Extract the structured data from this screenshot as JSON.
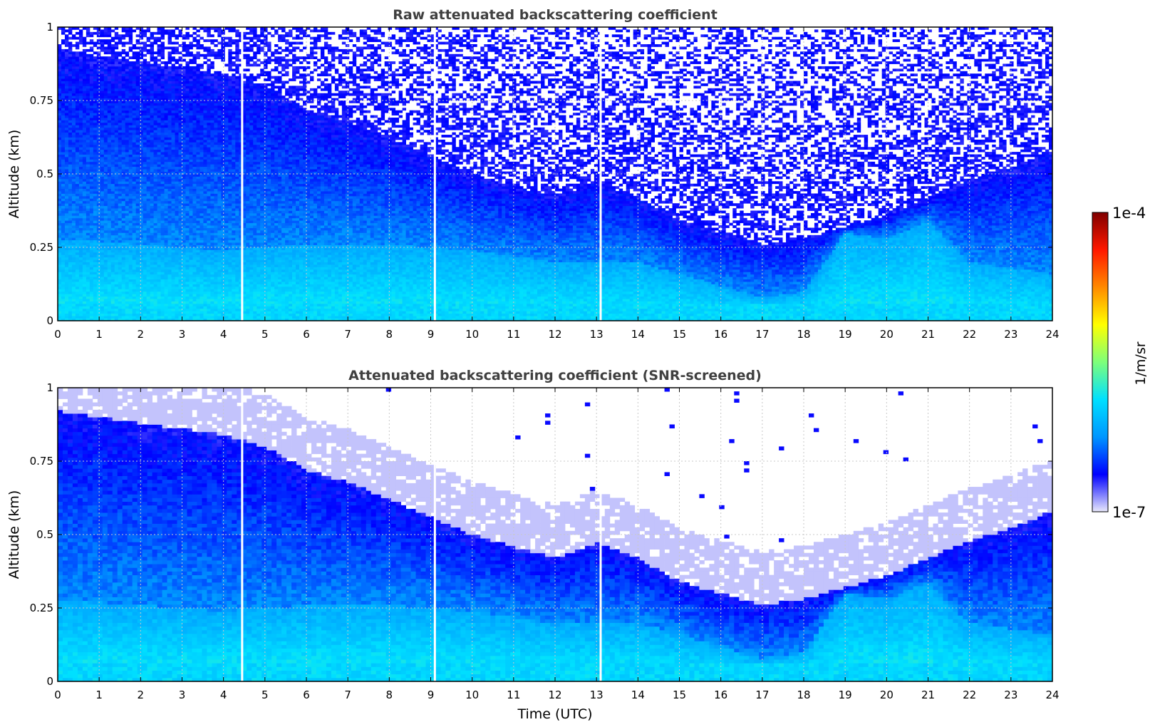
{
  "chart_data": [
    {
      "type": "heatmap",
      "title": "Raw attenuated backscattering coefficient",
      "xlabel": "",
      "ylabel": "Altitude (km)",
      "xlim": [
        0,
        24
      ],
      "ylim": [
        0,
        1
      ],
      "x_ticks": [
        0,
        1,
        2,
        3,
        4,
        5,
        6,
        7,
        8,
        9,
        10,
        11,
        12,
        13,
        14,
        15,
        16,
        17,
        18,
        19,
        20,
        21,
        22,
        23,
        24
      ],
      "y_ticks": [
        0,
        0.25,
        0.5,
        0.75,
        1
      ],
      "grid": true,
      "data_gaps_utc": [
        4.45,
        9.1,
        13.1
      ],
      "top_of_signal_km": [
        [
          0,
          0.92
        ],
        [
          1,
          0.9
        ],
        [
          2,
          0.88
        ],
        [
          3,
          0.86
        ],
        [
          4,
          0.84
        ],
        [
          5,
          0.8
        ],
        [
          6,
          0.72
        ],
        [
          7,
          0.68
        ],
        [
          8,
          0.62
        ],
        [
          9,
          0.56
        ],
        [
          10,
          0.5
        ],
        [
          11,
          0.46
        ],
        [
          12,
          0.42
        ],
        [
          13,
          0.47
        ],
        [
          14,
          0.42
        ],
        [
          15,
          0.34
        ],
        [
          16,
          0.3
        ],
        [
          17,
          0.26
        ],
        [
          18,
          0.28
        ],
        [
          19,
          0.32
        ],
        [
          20,
          0.36
        ],
        [
          21,
          0.42
        ],
        [
          22,
          0.48
        ],
        [
          23,
          0.52
        ],
        [
          24,
          0.58
        ]
      ],
      "boundary_layer_top_km": [
        [
          0,
          0.28
        ],
        [
          2,
          0.26
        ],
        [
          4,
          0.24
        ],
        [
          6,
          0.26
        ],
        [
          8,
          0.26
        ],
        [
          10,
          0.24
        ],
        [
          12,
          0.2
        ],
        [
          14,
          0.2
        ],
        [
          15,
          0.16
        ],
        [
          16,
          0.12
        ],
        [
          17,
          0.08
        ],
        [
          18,
          0.1
        ],
        [
          19,
          0.3
        ],
        [
          20,
          0.28
        ],
        [
          21,
          0.34
        ],
        [
          22,
          0.2
        ],
        [
          23,
          0.18
        ],
        [
          24,
          0.16
        ]
      ]
    },
    {
      "type": "heatmap",
      "title": "Attenuated backscattering coefficient (SNR-screened)",
      "xlabel": "Time (UTC)",
      "ylabel": "Altitude (km)",
      "xlim": [
        0,
        24
      ],
      "ylim": [
        0,
        1
      ],
      "x_ticks": [
        0,
        1,
        2,
        3,
        4,
        5,
        6,
        7,
        8,
        9,
        10,
        11,
        12,
        13,
        14,
        15,
        16,
        17,
        18,
        19,
        20,
        21,
        22,
        23,
        24
      ],
      "y_ticks": [
        0,
        0.25,
        0.5,
        0.75,
        1
      ],
      "grid": true,
      "data_gaps_utc": [
        4.45,
        9.1,
        13.1
      ],
      "top_of_signal_km": [
        [
          0,
          0.92
        ],
        [
          1,
          0.9
        ],
        [
          2,
          0.88
        ],
        [
          3,
          0.86
        ],
        [
          4,
          0.84
        ],
        [
          5,
          0.8
        ],
        [
          6,
          0.72
        ],
        [
          7,
          0.68
        ],
        [
          8,
          0.62
        ],
        [
          9,
          0.56
        ],
        [
          10,
          0.5
        ],
        [
          11,
          0.46
        ],
        [
          12,
          0.42
        ],
        [
          13,
          0.47
        ],
        [
          14,
          0.42
        ],
        [
          15,
          0.34
        ],
        [
          16,
          0.3
        ],
        [
          17,
          0.26
        ],
        [
          18,
          0.28
        ],
        [
          19,
          0.32
        ],
        [
          20,
          0.36
        ],
        [
          21,
          0.42
        ],
        [
          22,
          0.48
        ],
        [
          23,
          0.52
        ],
        [
          24,
          0.58
        ]
      ],
      "boundary_layer_top_km": [
        [
          0,
          0.28
        ],
        [
          2,
          0.26
        ],
        [
          4,
          0.24
        ],
        [
          6,
          0.26
        ],
        [
          8,
          0.26
        ],
        [
          10,
          0.24
        ],
        [
          12,
          0.2
        ],
        [
          14,
          0.2
        ],
        [
          15,
          0.16
        ],
        [
          16,
          0.12
        ],
        [
          17,
          0.08
        ],
        [
          18,
          0.1
        ],
        [
          19,
          0.3
        ],
        [
          20,
          0.28
        ],
        [
          21,
          0.34
        ],
        [
          22,
          0.2
        ],
        [
          23,
          0.18
        ],
        [
          24,
          0.16
        ]
      ]
    }
  ],
  "colorbar": {
    "label": "1/m/sr",
    "min_label": "1e-7",
    "max_label": "1e-4",
    "scale": "log",
    "colors": [
      "#e8e8fb",
      "#0000ff",
      "#0096ff",
      "#00e0ff",
      "#7dff7a",
      "#ffff00",
      "#ff8a00",
      "#ff1800",
      "#800000"
    ]
  }
}
